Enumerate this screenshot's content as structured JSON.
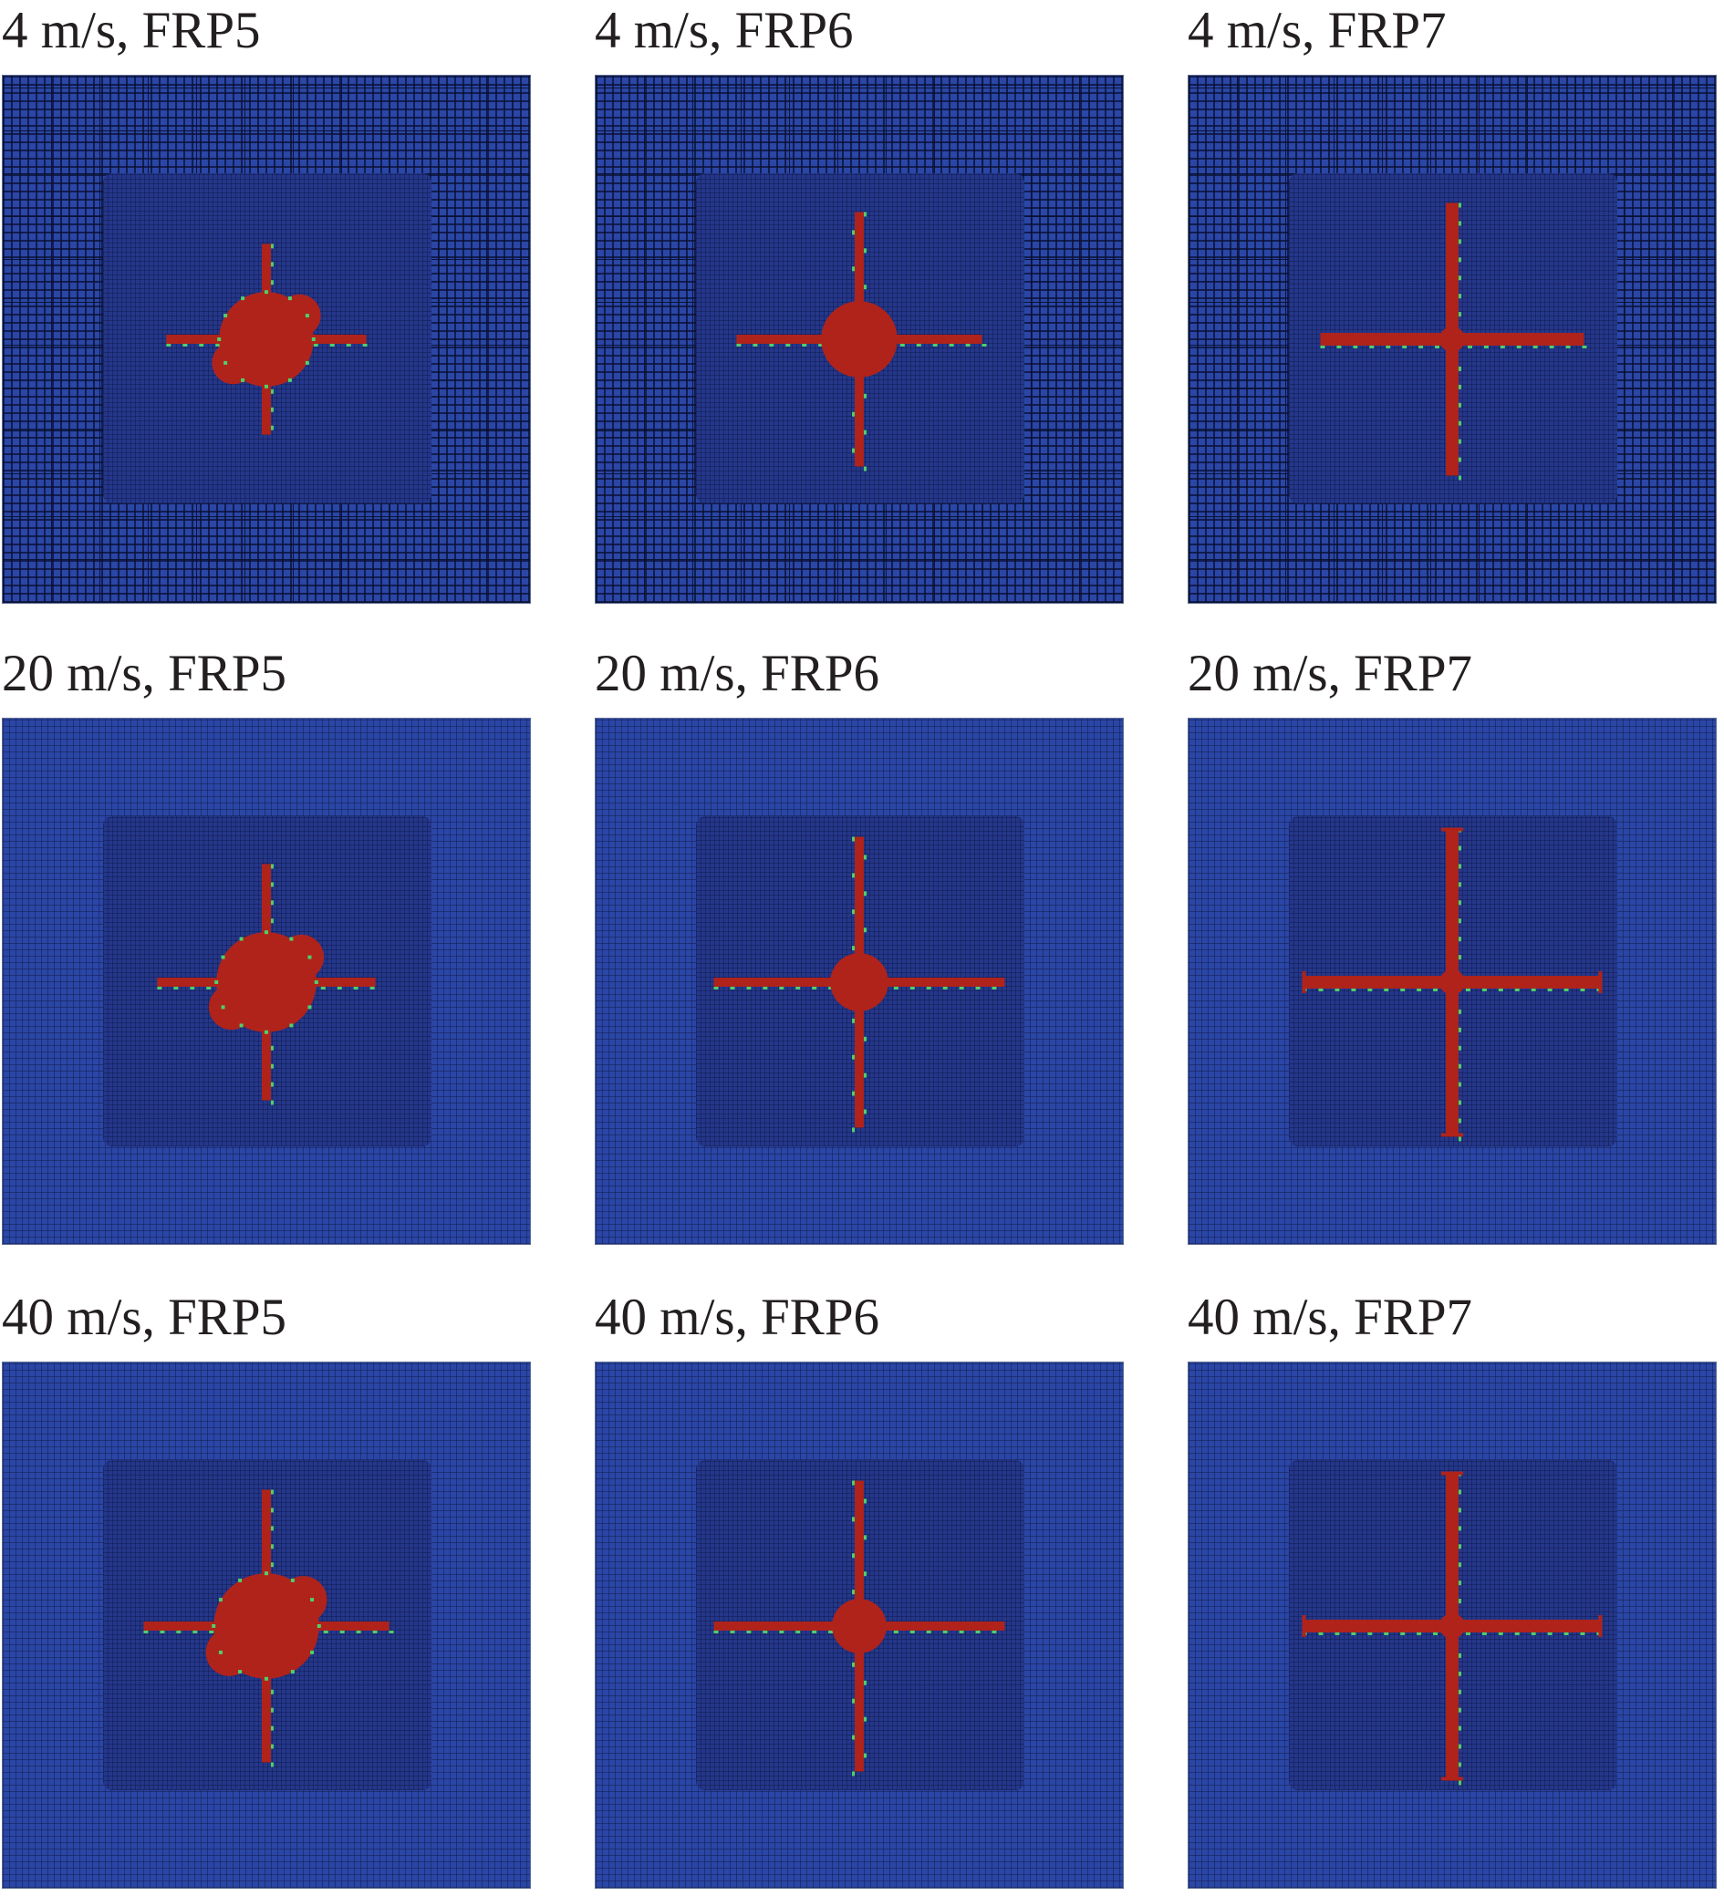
{
  "panels": [
    {
      "label": "4 m/s, FRP5"
    },
    {
      "label": "4 m/s, FRP6"
    },
    {
      "label": "4 m/s, FRP7"
    },
    {
      "label": "20 m/s, FRP5"
    },
    {
      "label": "20 m/s, FRP6"
    },
    {
      "label": "20 m/s, FRP7"
    },
    {
      "label": "40 m/s, FRP5"
    },
    {
      "label": "40 m/s, FRP6"
    },
    {
      "label": "40 m/s, FRP7"
    }
  ],
  "colors": {
    "plate": "#2a46a6",
    "impact_zone": "#24378a",
    "damage": "#b0231b",
    "damage_edge": "#4fd06a",
    "label_text": "#231f20"
  }
}
